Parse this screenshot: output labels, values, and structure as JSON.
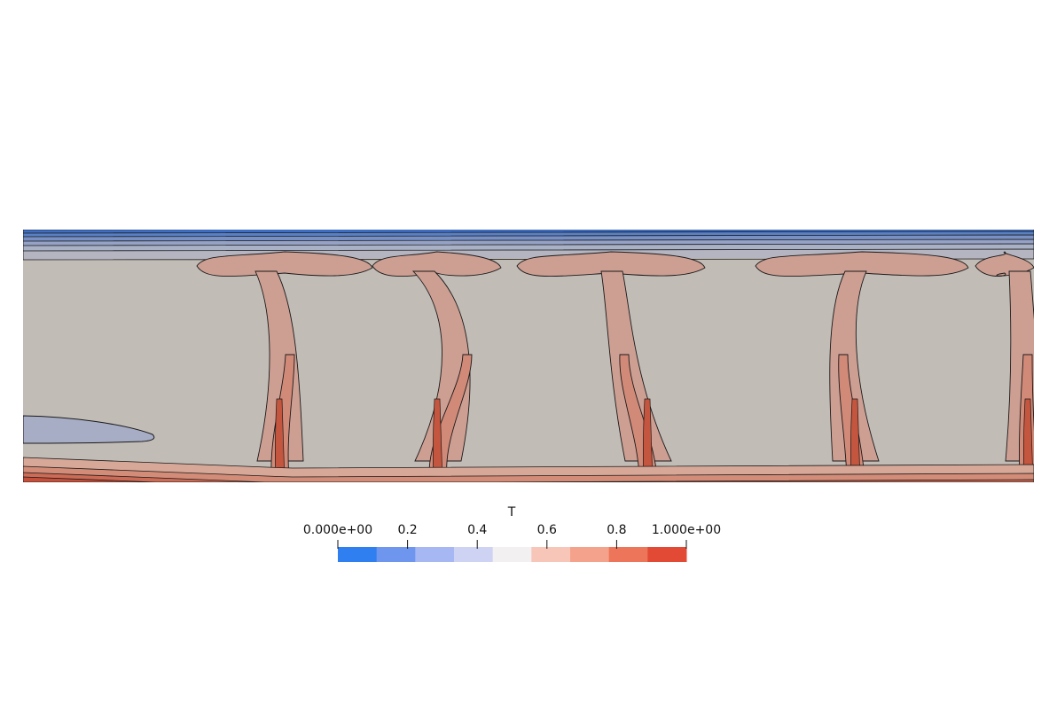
{
  "scalar_bar": {
    "title": "T",
    "range": [
      0,
      1
    ],
    "tick_labels": [
      "0.000e+00",
      "0.2",
      "0.4",
      "0.6",
      "0.8",
      "1.000e+00"
    ],
    "tick_values": [
      0,
      0.2,
      0.4,
      0.6,
      0.8,
      1.0
    ],
    "bands": [
      "#2f7ff1",
      "#6f96ee",
      "#a7b7f4",
      "#ced3f3",
      "#f2f0f0",
      "#f7c6b9",
      "#f4a28c",
      "#ed7559",
      "#e24a35"
    ]
  },
  "field_colors": {
    "top_band": [
      "#3e6ec3",
      "#5a80c4",
      "#7890c3",
      "#95a2c6",
      "#a9b1c6",
      "#b5b5c2"
    ],
    "bulk": "#c1bcb6",
    "cold_pocket": "#a8adc6",
    "plume_outer": "#cd9f93",
    "plume_mid": "#d28a78",
    "plume_core": "#c4553e",
    "bottom_band": [
      "#d7a898",
      "#d38c78",
      "#cc6b56",
      "#c4503b"
    ],
    "contour": "#1a1a1a"
  }
}
